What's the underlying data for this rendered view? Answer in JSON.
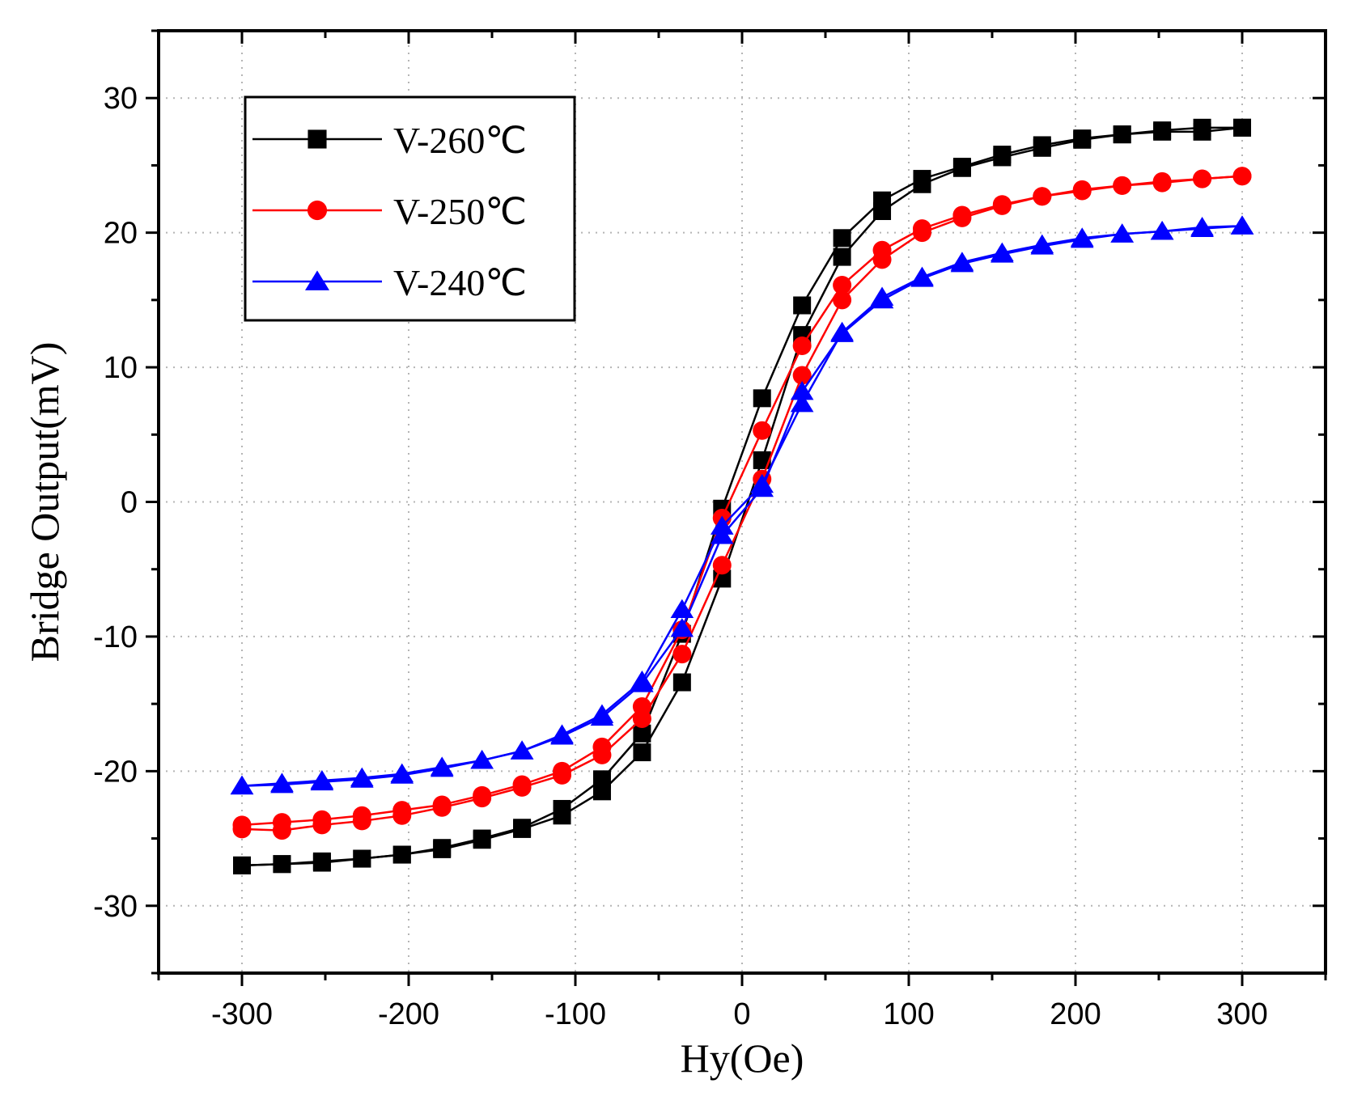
{
  "chart_data": {
    "type": "line",
    "title": "",
    "xlabel": "Hy(Oe)",
    "ylabel": "Bridge Output(mV)",
    "xlim": [
      -350,
      350
    ],
    "ylim": [
      -35,
      35
    ],
    "xticks": [
      -300,
      -200,
      -100,
      0,
      100,
      200,
      300
    ],
    "yticks": [
      -30,
      -20,
      -10,
      0,
      10,
      20,
      30
    ],
    "grid": true,
    "legend_position": "top-left",
    "series": [
      {
        "name": "V-260℃",
        "color": "#000000",
        "marker": "square",
        "branches": [
          {
            "x": [
              -300,
              -276,
              -252,
              -228,
              -204,
              -180,
              -156,
              -132,
              -108,
              -84,
              -60,
              -36,
              -12,
              12,
              36,
              60,
              84,
              108,
              132,
              156,
              180,
              204,
              228,
              252,
              276,
              300
            ],
            "y": [
              -27.0,
              -26.9,
              -26.7,
              -26.5,
              -26.2,
              -25.7,
              -25.0,
              -24.2,
              -22.8,
              -20.6,
              -17.2,
              -9.8,
              -0.5,
              7.7,
              14.6,
              19.6,
              22.4,
              24.0,
              24.9,
              25.8,
              26.5,
              27.0,
              27.3,
              27.6,
              27.8,
              27.8
            ]
          },
          {
            "x": [
              300,
              276,
              252,
              228,
              204,
              180,
              156,
              132,
              108,
              84,
              60,
              36,
              12,
              -12,
              -36,
              -60,
              -84,
              -108,
              -132,
              -156,
              -180,
              -204,
              -228,
              -252,
              -276,
              -300
            ],
            "y": [
              27.8,
              27.5,
              27.5,
              27.3,
              26.9,
              26.3,
              25.6,
              24.8,
              23.6,
              21.6,
              18.2,
              12.4,
              3.1,
              -5.7,
              -13.4,
              -18.6,
              -21.5,
              -23.3,
              -24.3,
              -25.1,
              -25.8,
              -26.2,
              -26.5,
              -26.8,
              -26.9,
              -27.0
            ]
          }
        ]
      },
      {
        "name": "V-250℃",
        "color": "#ff0000",
        "marker": "circle",
        "branches": [
          {
            "x": [
              -300,
              -276,
              -252,
              -228,
              -204,
              -180,
              -156,
              -132,
              -108,
              -84,
              -60,
              -36,
              -12,
              12,
              36,
              60,
              84,
              108,
              132,
              156,
              180,
              204,
              228,
              252,
              276,
              300
            ],
            "y": [
              -24.0,
              -23.8,
              -23.6,
              -23.3,
              -22.9,
              -22.5,
              -21.8,
              -21.0,
              -20.0,
              -18.2,
              -15.2,
              -9.5,
              -1.2,
              5.3,
              11.6,
              16.1,
              18.7,
              20.3,
              21.3,
              22.1,
              22.7,
              23.2,
              23.5,
              23.8,
              24.0,
              24.2
            ]
          },
          {
            "x": [
              300,
              276,
              252,
              228,
              204,
              180,
              156,
              132,
              108,
              84,
              60,
              36,
              12,
              -12,
              -36,
              -60,
              -84,
              -108,
              -132,
              -156,
              -180,
              -204,
              -228,
              -252,
              -276,
              -300
            ],
            "y": [
              24.2,
              24.0,
              23.7,
              23.5,
              23.1,
              22.7,
              22.0,
              21.1,
              20.0,
              18.0,
              15.0,
              9.4,
              1.7,
              -4.7,
              -11.3,
              -16.1,
              -18.8,
              -20.3,
              -21.2,
              -22.0,
              -22.7,
              -23.3,
              -23.7,
              -24.0,
              -24.4,
              -24.3
            ]
          }
        ]
      },
      {
        "name": "V-240℃",
        "color": "#0000ff",
        "marker": "triangle",
        "branches": [
          {
            "x": [
              -300,
              -276,
              -252,
              -228,
              -204,
              -180,
              -156,
              -132,
              -108,
              -84,
              -60,
              -36,
              -12,
              12,
              36,
              60,
              84,
              108,
              132,
              156,
              180,
              204,
              228,
              252,
              276,
              300
            ],
            "y": [
              -21.1,
              -20.9,
              -20.7,
              -20.5,
              -20.2,
              -19.7,
              -19.2,
              -18.5,
              -17.3,
              -15.8,
              -13.3,
              -8.0,
              -1.8,
              1.3,
              7.3,
              12.6,
              15.2,
              16.7,
              17.8,
              18.5,
              19.1,
              19.6,
              19.9,
              20.1,
              20.4,
              20.5
            ]
          },
          {
            "x": [
              300,
              276,
              252,
              228,
              204,
              180,
              156,
              132,
              108,
              84,
              60,
              36,
              12,
              -12,
              -36,
              -60,
              -84,
              -108,
              -132,
              -156,
              -180,
              -204,
              -228,
              -252,
              -276,
              -300
            ],
            "y": [
              20.5,
              20.3,
              20.1,
              19.9,
              19.5,
              19.0,
              18.4,
              17.7,
              16.6,
              15.0,
              12.5,
              8.2,
              1.0,
              -2.5,
              -9.4,
              -13.5,
              -16.0,
              -17.4,
              -18.5,
              -19.2,
              -19.8,
              -20.3,
              -20.6,
              -20.8,
              -21.0,
              -21.1
            ]
          }
        ]
      }
    ]
  }
}
